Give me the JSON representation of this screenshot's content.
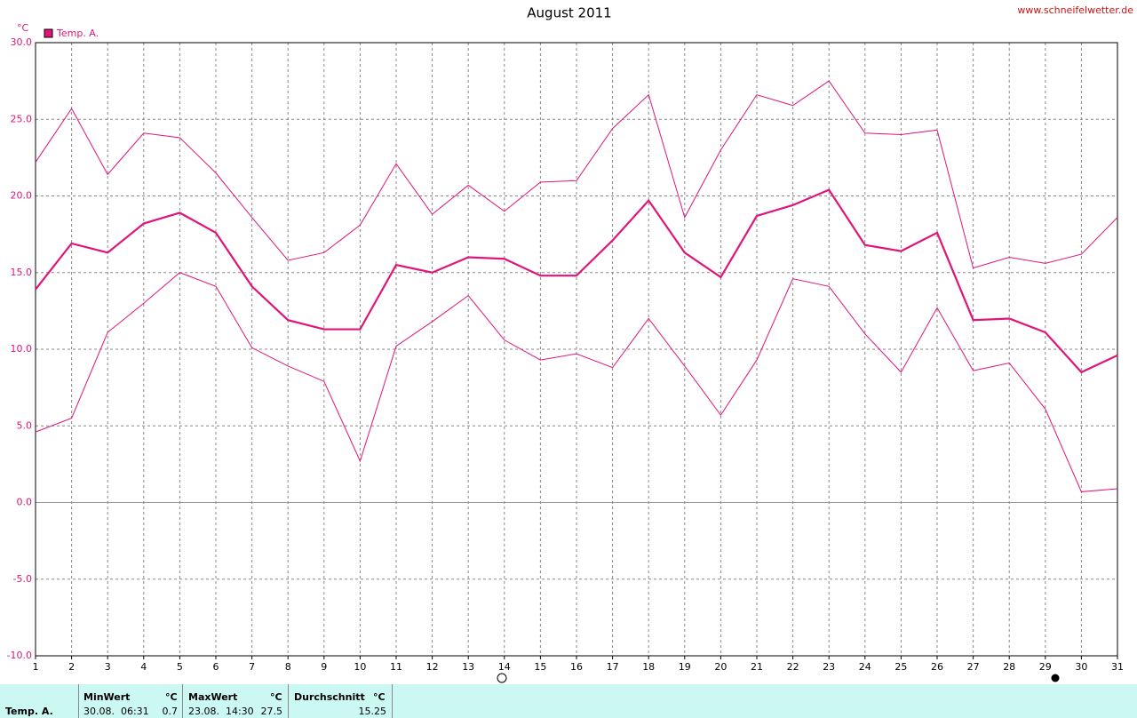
{
  "chart_data": {
    "type": "line",
    "title": "August 2011",
    "source": "www.schneifelwetter.de",
    "y_unit": "°C",
    "x": [
      1,
      2,
      3,
      4,
      5,
      6,
      7,
      8,
      9,
      10,
      11,
      12,
      13,
      14,
      15,
      16,
      17,
      18,
      19,
      20,
      21,
      22,
      23,
      24,
      25,
      26,
      27,
      28,
      29,
      30,
      31
    ],
    "xlim": [
      1,
      31
    ],
    "xticks": [
      1,
      2,
      3,
      4,
      5,
      6,
      7,
      8,
      9,
      10,
      11,
      12,
      13,
      14,
      15,
      16,
      17,
      18,
      19,
      20,
      21,
      22,
      23,
      24,
      25,
      26,
      27,
      28,
      29,
      30,
      31
    ],
    "ylim": [
      -10,
      30
    ],
    "yticks": [
      {
        "value": -10,
        "label": "-10.0"
      },
      {
        "value": -5,
        "label": "-5.0"
      },
      {
        "value": 0,
        "label": "0.0"
      },
      {
        "value": 5,
        "label": "5.0"
      },
      {
        "value": 10,
        "label": "10.0"
      },
      {
        "value": 15,
        "label": "15.0"
      },
      {
        "value": 20,
        "label": "20.0"
      },
      {
        "value": 25,
        "label": "25.0"
      },
      {
        "value": 30,
        "label": "30.0"
      }
    ],
    "grid": true,
    "legend": "top-left",
    "series": [
      {
        "name": "Temp. A.",
        "color": "#e0157a",
        "width": 2.2,
        "values": [
          13.9,
          16.9,
          16.3,
          18.2,
          18.9,
          17.6,
          14.1,
          11.9,
          11.3,
          11.3,
          15.5,
          15.0,
          16.0,
          15.9,
          14.8,
          14.8,
          17.1,
          19.7,
          16.3,
          14.7,
          18.7,
          19.4,
          20.4,
          16.8,
          16.4,
          17.6,
          11.9,
          12.0,
          11.1,
          8.5,
          9.6
        ]
      },
      {
        "color": "#e0157a",
        "width": 1,
        "values": [
          22.2,
          25.7,
          21.4,
          24.1,
          23.8,
          21.5,
          18.6,
          15.8,
          16.3,
          18.1,
          22.1,
          18.8,
          20.7,
          19.0,
          20.9,
          21.0,
          24.4,
          26.6,
          18.6,
          23.0,
          26.6,
          25.9,
          27.5,
          24.1,
          24.0,
          24.3,
          15.3,
          16.0,
          15.6,
          16.2,
          18.6
        ]
      },
      {
        "color": "#e0157a",
        "width": 1,
        "values": [
          4.6,
          5.5,
          11.1,
          13.0,
          15.0,
          14.1,
          10.1,
          8.9,
          7.9,
          2.7,
          10.2,
          11.8,
          13.5,
          10.6,
          9.3,
          9.7,
          8.8,
          12.0,
          8.9,
          5.7,
          9.3,
          14.6,
          14.1,
          11.0,
          8.5,
          12.7,
          8.6,
          9.1,
          6.1,
          0.7,
          0.9
        ]
      }
    ]
  },
  "footer": {
    "row_label": "Temp. A.",
    "columns": [
      {
        "header": "MinWert",
        "unit": "°C",
        "time": "30.08.  06:31",
        "value": "0.7"
      },
      {
        "header": "MaxWert",
        "unit": "°C",
        "time": "23.08.  14:30",
        "value": "27.5"
      },
      {
        "header": "Durchschnitt",
        "unit": "°C",
        "value": "15.25"
      }
    ]
  }
}
